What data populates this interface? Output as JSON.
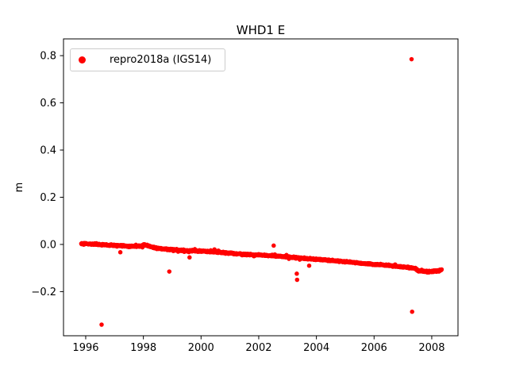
{
  "window": {
    "background": "#ffffff"
  },
  "chart_data": {
    "type": "scatter",
    "title": "WHD1 E",
    "xlabel": "",
    "ylabel": "m",
    "xlim": [
      1995.23,
      2008.91
    ],
    "ylim": [
      -0.387,
      0.871
    ],
    "xticks": [
      1996,
      1998,
      2000,
      2002,
      2004,
      2006,
      2008
    ],
    "xtick_labels": [
      "1996",
      "1998",
      "2000",
      "2002",
      "2004",
      "2006",
      "2008"
    ],
    "yticks": [
      -0.2,
      0.0,
      0.2,
      0.4,
      0.6,
      0.8
    ],
    "ytick_labels": [
      "−0.2",
      "0.0",
      "0.2",
      "0.4",
      "0.6",
      "0.8"
    ],
    "grid": false,
    "frame_color": "#000000",
    "legend": {
      "position": "upper left",
      "entries": [
        {
          "label": "repro2018a (IGS14)",
          "color": "#ff0000",
          "marker": "dot"
        }
      ]
    },
    "series": [
      {
        "name": "repro2018a (IGS14)",
        "color": "#ff0000",
        "marker_diameter_px": 5.5,
        "dense_band": {
          "description": "dense daily position time series declining roughly linearly from ~0.00 m in 1996 to ~-0.11 m in 2008",
          "x_start": 1995.85,
          "x_end": 2008.35,
          "sample_step_years": 0.008,
          "noise_amplitude_m": 0.0045,
          "trend_anchors": [
            [
              1995.85,
              0.004
            ],
            [
              1996.1,
              0.002
            ],
            [
              1996.4,
              0.0
            ],
            [
              1996.8,
              -0.003
            ],
            [
              1997.1,
              -0.005
            ],
            [
              1997.5,
              -0.008
            ],
            [
              1997.9,
              -0.007
            ],
            [
              1998.05,
              -0.002
            ],
            [
              1998.3,
              -0.012
            ],
            [
              1998.7,
              -0.019
            ],
            [
              1999.1,
              -0.023
            ],
            [
              1999.5,
              -0.026
            ],
            [
              2000.0,
              -0.028
            ],
            [
              2000.5,
              -0.032
            ],
            [
              2001.0,
              -0.037
            ],
            [
              2001.5,
              -0.042
            ],
            [
              2002.0,
              -0.045
            ],
            [
              2002.5,
              -0.048
            ],
            [
              2003.0,
              -0.053
            ],
            [
              2003.5,
              -0.058
            ],
            [
              2004.0,
              -0.063
            ],
            [
              2004.5,
              -0.068
            ],
            [
              2005.0,
              -0.073
            ],
            [
              2005.5,
              -0.079
            ],
            [
              2006.0,
              -0.084
            ],
            [
              2006.5,
              -0.089
            ],
            [
              2007.0,
              -0.095
            ],
            [
              2007.4,
              -0.101
            ],
            [
              2007.55,
              -0.111
            ],
            [
              2007.9,
              -0.116
            ],
            [
              2008.1,
              -0.113
            ],
            [
              2008.35,
              -0.108
            ]
          ]
        },
        "outliers": [
          [
            1996.55,
            -0.34
          ],
          [
            1997.2,
            -0.033
          ],
          [
            1998.9,
            -0.115
          ],
          [
            1999.6,
            -0.055
          ],
          [
            2002.52,
            -0.005
          ],
          [
            2003.32,
            -0.124
          ],
          [
            2003.33,
            -0.15
          ],
          [
            2003.75,
            -0.09
          ],
          [
            2007.3,
            0.785
          ],
          [
            2007.32,
            -0.285
          ]
        ]
      }
    ]
  }
}
